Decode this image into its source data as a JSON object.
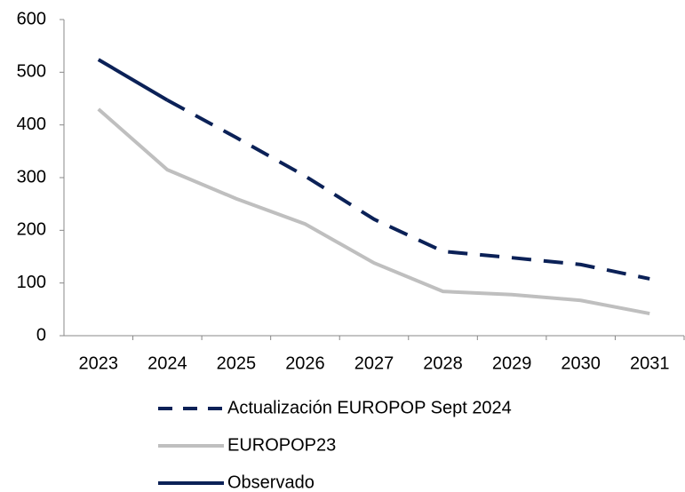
{
  "chart_data": {
    "type": "line",
    "categories": [
      "2023",
      "2024",
      "2025",
      "2026",
      "2027",
      "2028",
      "2029",
      "2030",
      "2031"
    ],
    "series": [
      {
        "name": "Actualización EUROPOP Sept 2024",
        "color": "#0b2157",
        "style": "dashed",
        "values": [
          null,
          447,
          376,
          303,
          221,
          160,
          148,
          135,
          108
        ]
      },
      {
        "name": "EUROPOP23",
        "color": "#bfbfbf",
        "style": "solid",
        "values": [
          430,
          315,
          260,
          212,
          138,
          84,
          78,
          67,
          42
        ]
      },
      {
        "name": "Observado",
        "color": "#0b2157",
        "style": "solid",
        "values": [
          524,
          447,
          null,
          null,
          null,
          null,
          null,
          null,
          null
        ]
      }
    ],
    "ylim": [
      0,
      600
    ],
    "yticks": [
      0,
      100,
      200,
      300,
      400,
      500,
      600
    ],
    "grid": false,
    "legend": "bottom"
  }
}
